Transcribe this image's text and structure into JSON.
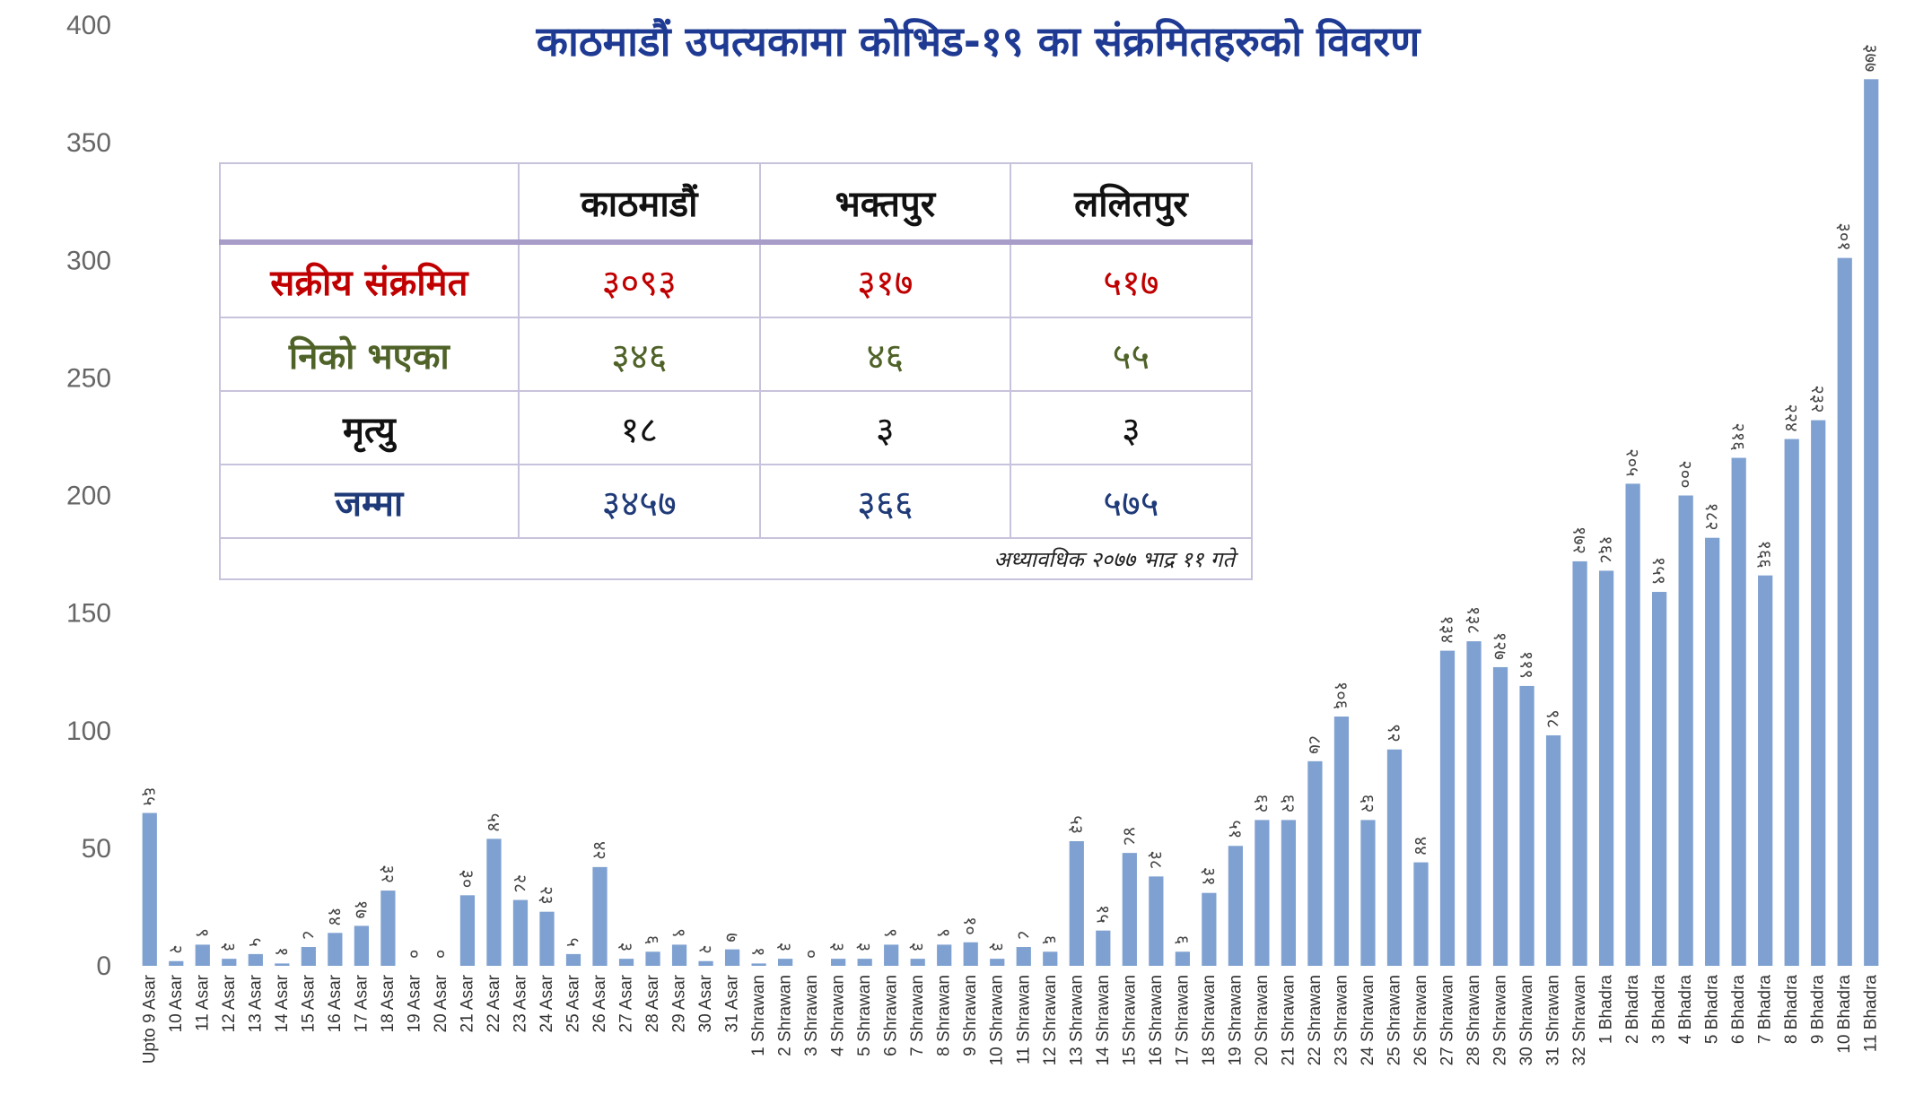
{
  "chart_data": {
    "type": "bar",
    "title": "काठमाडौं उपत्यकामा कोभिड-१९ का संक्रमितहरुको विवरण",
    "xlabel": "",
    "ylabel": "",
    "ylim": [
      0,
      400
    ],
    "yticks": [
      0,
      50,
      100,
      150,
      200,
      250,
      300,
      350,
      400
    ],
    "bar_color": "#7fa1d1",
    "categories": [
      "Upto 9 Asar",
      "10 Asar",
      "11 Asar",
      "12 Asar",
      "13 Asar",
      "14 Asar",
      "15 Asar",
      "16 Asar",
      "17 Asar",
      "18 Asar",
      "19 Asar",
      "20 Asar",
      "21 Asar",
      "22 Asar",
      "23 Asar",
      "24 Asar",
      "25 Asar",
      "26 Asar",
      "27 Asar",
      "28 Asar",
      "29 Asar",
      "30 Asar",
      "31 Asar",
      "1 Shrawan",
      "2 Shrawan",
      "3 Shrawan",
      "4 Shrawan",
      "5 Shrawan",
      "6 Shrawan",
      "7 Shrawan",
      "8 Shrawan",
      "9 Shrawan",
      "10 Shrawan",
      "11 Shrawan",
      "12 Shrawan",
      "13 Shrawan",
      "14 Shrawan",
      "15 Shrawan",
      "16 Shrawan",
      "17 Shrawan",
      "18 Shrawan",
      "19 Shrawan",
      "20 Shrawan",
      "21 Shrawan",
      "22 Shrawan",
      "23 Shrawan",
      "24 Shrawan",
      "25 Shrawan",
      "26 Shrawan",
      "27 Shrawan",
      "28 Shrawan",
      "29 Shrawan",
      "30 Shrawan",
      "31 Shrawan",
      "32 Shrawan",
      "1 Bhadra",
      "2 Bhadra",
      "3 Bhadra",
      "4 Bhadra",
      "5 Bhadra",
      "6 Bhadra",
      "7 Bhadra",
      "8 Bhadra",
      "9 Bhadra",
      "10 Bhadra",
      "11 Bhadra"
    ],
    "values": [
      65,
      2,
      9,
      3,
      5,
      1,
      8,
      14,
      17,
      32,
      0,
      0,
      30,
      54,
      28,
      23,
      5,
      42,
      3,
      6,
      9,
      2,
      7,
      1,
      3,
      0,
      3,
      3,
      9,
      3,
      9,
      10,
      3,
      8,
      6,
      53,
      15,
      48,
      38,
      6,
      31,
      51,
      62,
      62,
      87,
      106,
      62,
      92,
      44,
      134,
      138,
      127,
      119,
      98,
      172,
      168,
      205,
      159,
      200,
      182,
      216,
      166,
      224,
      232,
      301,
      377
    ],
    "data_labels": [
      "६५",
      "२",
      "९",
      "३",
      "५",
      "१",
      "८",
      "१४",
      "१७",
      "३२",
      "०",
      "०",
      "३०",
      "५४",
      "२८",
      "२३",
      "५",
      "४२",
      "३",
      "६",
      "९",
      "२",
      "७",
      "१",
      "३",
      "०",
      "३",
      "३",
      "९",
      "३",
      "९",
      "१०",
      "३",
      "८",
      "६",
      "५३",
      "१५",
      "४८",
      "३८",
      "६",
      "३१",
      "५१",
      "६२",
      "६२",
      "८७",
      "१०६",
      "६२",
      "९२",
      "४४",
      "१३४",
      "१३८",
      "१२७",
      "११९",
      "९८",
      "१७२",
      "१६८",
      "२०५",
      "१५९",
      "२००",
      "१८२",
      "२१६",
      "१६६",
      "२२४",
      "२३२",
      "३०१",
      "३७७"
    ]
  },
  "summary_table": {
    "header": [
      "",
      "काठमाडौं",
      "भक्तपुर",
      "ललितपुर"
    ],
    "rows": [
      {
        "label": "सक्रीय संक्रमित",
        "values": [
          "३०९३",
          "३१७",
          "५१७"
        ],
        "color": "#c00000"
      },
      {
        "label": "निको भएका",
        "values": [
          "३४६",
          "४६",
          "५५"
        ],
        "color": "#4f6228"
      },
      {
        "label": "मृत्यु",
        "values": [
          "१८",
          "३",
          "३"
        ],
        "color": "#111111"
      },
      {
        "label": "जम्मा",
        "values": [
          "३४५७",
          "३६६",
          "५७५"
        ],
        "color": "#1f3a78"
      }
    ],
    "note": "अध्यावधिक २०७७ भाद्र ११ गते"
  }
}
